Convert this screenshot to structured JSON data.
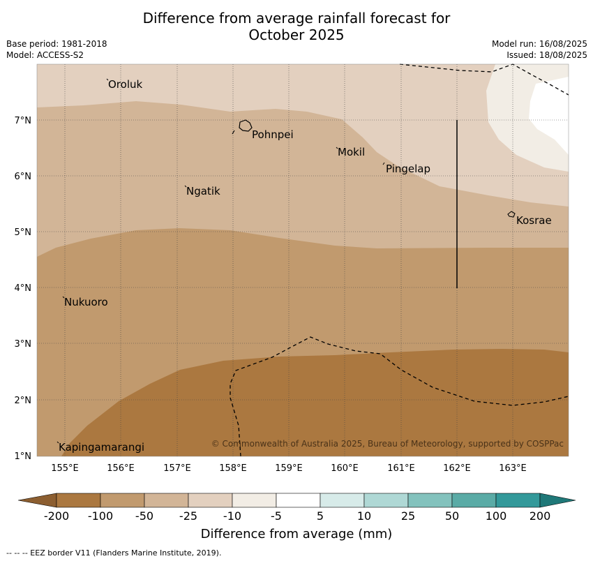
{
  "title": {
    "line1": "Difference from average rainfall forecast for",
    "line2": "October 2025"
  },
  "meta": {
    "base_period": "Base period: 1981-2018",
    "model": "Model: ACCESS-S2",
    "model_run": "Model run: 16/08/2025",
    "issued": "Issued: 18/08/2025"
  },
  "axes": {
    "lat_ticks": [
      "7°N",
      "6°N",
      "5°N",
      "4°N",
      "3°N",
      "2°N",
      "1°N"
    ],
    "lon_ticks": [
      "155°E",
      "156°E",
      "157°E",
      "158°E",
      "159°E",
      "160°E",
      "161°E",
      "162°E",
      "163°E"
    ]
  },
  "places": [
    "Oroluk",
    "Pohnpei",
    "Mokil",
    "Pingelap",
    "Ngatik",
    "Kosrae",
    "Nukuoro",
    "Kapingamarangi"
  ],
  "copyright": "© Commonwealth of Australia 2025, Bureau of Meteorology, supported by COSPPac",
  "legend": {
    "title": "Difference from average (mm)",
    "labels": [
      "-200",
      "-100",
      "-50",
      "-25",
      "-10",
      "-5",
      "5",
      "10",
      "25",
      "50",
      "100",
      "200"
    ],
    "colors": [
      "#ab7840",
      "#c19a6e",
      "#d2b597",
      "#e3d0bf",
      "#f2ede5",
      "#ffffff",
      "#d7ebe9",
      "#afd8d5",
      "#83c2bd",
      "#5aaba6",
      "#33999a"
    ],
    "under_color": "#8c5e30",
    "over_color": "#1f7878"
  },
  "footnote": "--  --  -- EEZ border V11 (Flanders Marine Institute, 2019).",
  "colors": {
    "grid": "#444444",
    "eez": "#000000"
  }
}
